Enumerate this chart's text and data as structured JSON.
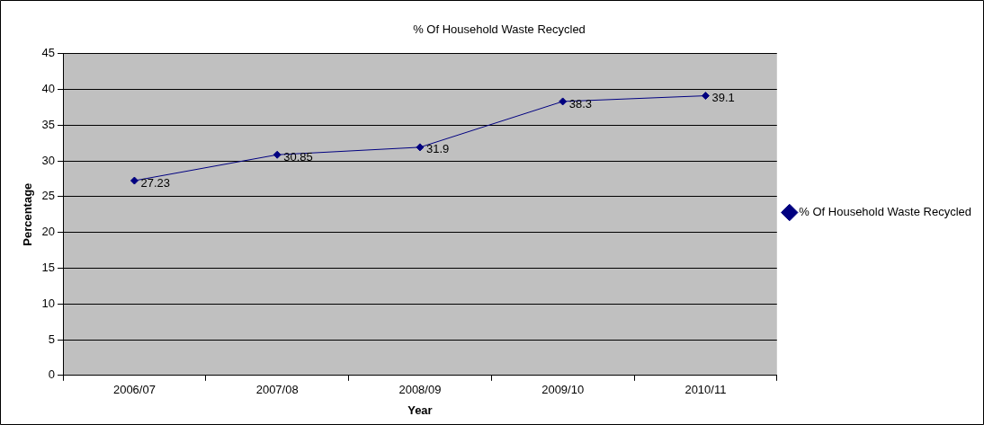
{
  "chart_data": {
    "type": "line",
    "title": "% Of Household Waste Recycled",
    "xlabel": "Year",
    "ylabel": "Percentage",
    "categories": [
      "2006/07",
      "2007/08",
      "2008/09",
      "2009/10",
      "2010/11"
    ],
    "series": [
      {
        "name": "% Of Household Waste Recycled",
        "color": "#000080",
        "values": [
          27.23,
          30.85,
          31.9,
          38.3,
          39.1
        ]
      }
    ],
    "ylim": [
      0,
      45
    ],
    "yticks": [
      0,
      5,
      10,
      15,
      20,
      25,
      30,
      35,
      40,
      45
    ],
    "grid": "y",
    "legend": "right",
    "marker": "diamond",
    "line_style": "solid",
    "data_labels": true
  }
}
